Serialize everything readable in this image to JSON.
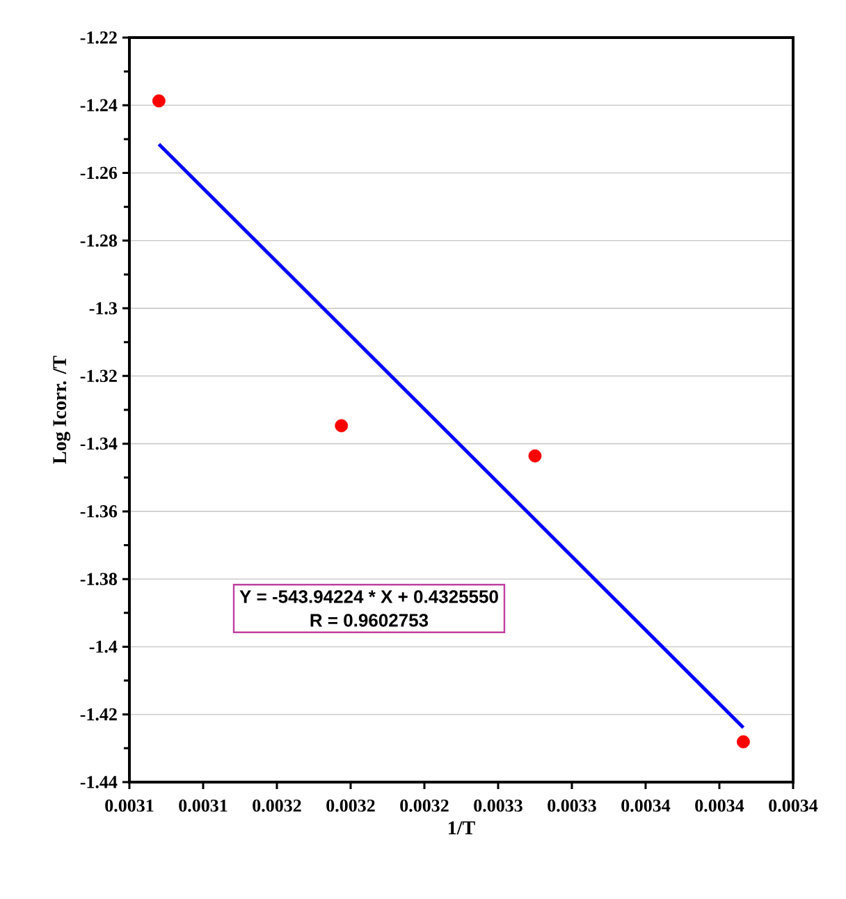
{
  "chart_data": {
    "type": "scatter",
    "xlabel": "1/T",
    "ylabel": "Log Icorr. /T",
    "x": [
      0.003096,
      0.003195,
      0.0033,
      0.003413
    ],
    "series": [
      {
        "color": "#ff0000",
        "marker": "circle",
        "values": [
          -1.2387,
          -1.3347,
          -1.3436,
          -1.4281
        ]
      },
      {
        "type": "line",
        "color": "#0000ff",
        "marker": "none",
        "line_style": "solid",
        "x": [
          0.003096,
          0.003413
        ],
        "values": [
          -1.2515,
          -1.4239
        ]
      }
    ],
    "xlim": [
      0.00308,
      0.00344
    ],
    "xticks": [
      {
        "value": 0.00308,
        "label": "0.0031"
      },
      {
        "value": 0.00312,
        "label": "0.0031"
      },
      {
        "value": 0.00316,
        "label": "0.0032"
      },
      {
        "value": 0.0032,
        "label": "0.0032"
      },
      {
        "value": 0.00324,
        "label": "0.0032"
      },
      {
        "value": 0.00328,
        "label": "0.0033"
      },
      {
        "value": 0.00332,
        "label": "0.0033"
      },
      {
        "value": 0.00336,
        "label": "0.0034"
      },
      {
        "value": 0.0034,
        "label": "0.0034"
      },
      {
        "value": 0.00344,
        "label": "0.0034"
      }
    ],
    "ylim": [
      -1.44,
      -1.22
    ],
    "yticks": [
      -1.44,
      -1.42,
      -1.4,
      -1.38,
      -1.36,
      -1.34,
      -1.32,
      -1.3,
      -1.28,
      -1.26,
      -1.24,
      -1.22
    ],
    "grid": "y",
    "annotations": [
      "Y = -543.94224 * X + 0.4325550",
      "R = 0.9602753"
    ]
  }
}
